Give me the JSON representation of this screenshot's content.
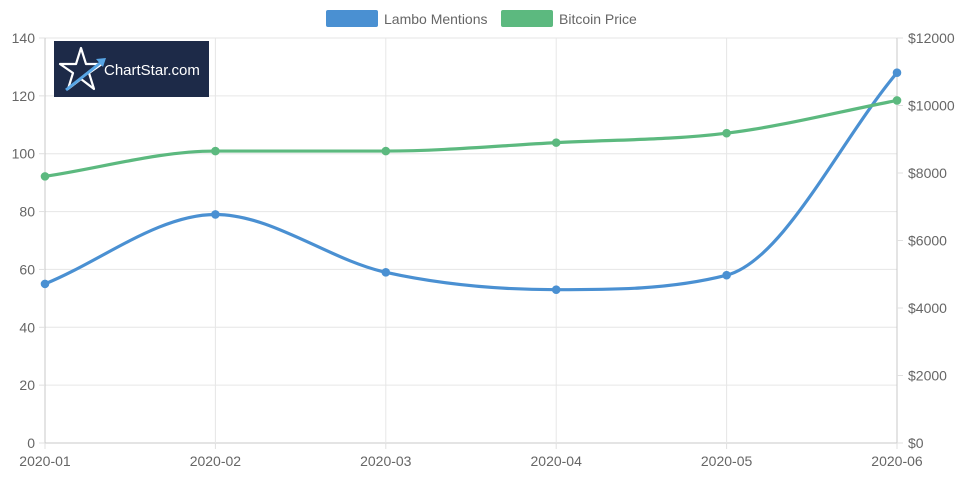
{
  "logo": {
    "text": "ChartStar.com"
  },
  "chart_data": {
    "type": "line",
    "categories": [
      "2020-01",
      "2020-02",
      "2020-03",
      "2020-04",
      "2020-05",
      "2020-06"
    ],
    "series": [
      {
        "name": "Lambo Mentions",
        "axis": "left",
        "color": "#4a90d2",
        "values": [
          55,
          79,
          59,
          53,
          58,
          128
        ]
      },
      {
        "name": "Bitcoin Price",
        "axis": "right",
        "color": "#5cb97f",
        "values": [
          7900,
          8650,
          8650,
          8900,
          9180,
          10150
        ]
      }
    ],
    "y_left": {
      "min": 0,
      "max": 140,
      "step": 20,
      "ticks": [
        "0",
        "20",
        "40",
        "60",
        "80",
        "100",
        "120",
        "140"
      ]
    },
    "y_right": {
      "min": 0,
      "max": 12000,
      "step": 2000,
      "ticks": [
        "$0",
        "$2000",
        "$4000",
        "$6000",
        "$8000",
        "$10000",
        "$12000"
      ]
    },
    "legend_position": "top-center",
    "grid": true
  }
}
